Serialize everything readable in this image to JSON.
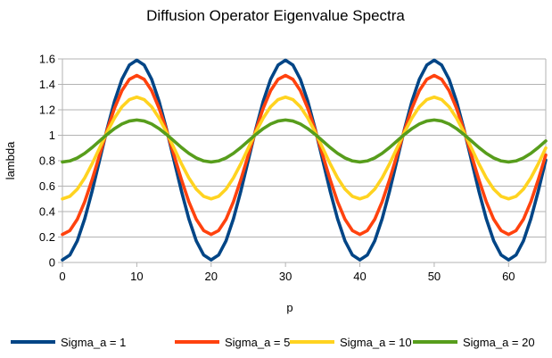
{
  "chart_data": {
    "type": "line",
    "title": "Diffusion Operator Eigenvalue Spectra",
    "xlabel": "p",
    "ylabel": "lambda",
    "xlim": [
      0,
      65
    ],
    "ylim": [
      0,
      1.6
    ],
    "x_ticks": [
      "0",
      "10",
      "20",
      "30",
      "40",
      "50",
      "60"
    ],
    "y_ticks": [
      "0",
      "0.2",
      "0.4",
      "0.6",
      "0.8",
      "1",
      "1.2",
      "1.4",
      "1.6"
    ],
    "grid": "horizontal",
    "legend_position": "bottom",
    "x": [
      0,
      1,
      2,
      3,
      4,
      5,
      6,
      7,
      8,
      9,
      10,
      11,
      12,
      13,
      14,
      15,
      16,
      17,
      18,
      19,
      20,
      21,
      22,
      23,
      24,
      25,
      26,
      27,
      28,
      29,
      30,
      31,
      32,
      33,
      34,
      35,
      36,
      37,
      38,
      39,
      40,
      41,
      42,
      43,
      44,
      45,
      46,
      47,
      48,
      49,
      50,
      51,
      52,
      53,
      54,
      55,
      56,
      57,
      58,
      59,
      60,
      61,
      62,
      63,
      64,
      65
    ],
    "series": [
      {
        "name": "Sigma_a = 1",
        "color": "#004586",
        "peak": 1.59,
        "trough": 0.02
      },
      {
        "name": "Sigma_a = 5",
        "color": "#ff420e",
        "peak": 1.47,
        "trough": 0.22
      },
      {
        "name": "Sigma_a = 10",
        "color": "#ffd320",
        "peak": 1.3,
        "trough": 0.5
      },
      {
        "name": "Sigma_a = 20",
        "color": "#579d1c",
        "peak": 1.12,
        "trough": 0.79
      }
    ]
  }
}
